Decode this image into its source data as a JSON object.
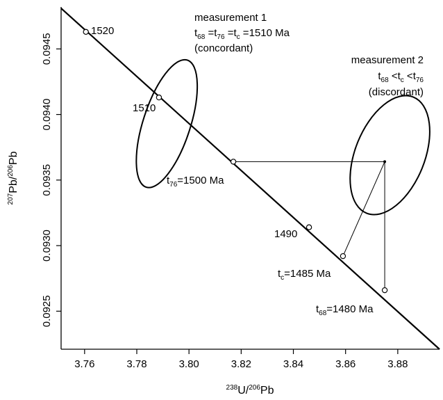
{
  "chart_data": {
    "type": "scatter",
    "title": "",
    "xlabel": {
      "sup": "238",
      "main1": "U/",
      "sup2": "206",
      "main2": "Pb"
    },
    "ylabel": {
      "sup": "207",
      "main1": "Pb/",
      "sup2": "206",
      "main2": "Pb"
    },
    "xlim": [
      3.751,
      3.896
    ],
    "ylim": [
      0.09221,
      0.09482
    ],
    "x_ticks": [
      3.76,
      3.78,
      3.8,
      3.82,
      3.84,
      3.86,
      3.88
    ],
    "x_tick_labels": [
      "3.76",
      "3.78",
      "3.80",
      "3.82",
      "3.84",
      "3.86",
      "3.88"
    ],
    "y_ticks": [
      0.0925,
      0.093,
      0.0935,
      0.094,
      0.0945
    ],
    "y_tick_labels": [
      "0.0925",
      "0.0930",
      "0.0935",
      "0.0940",
      "0.0945"
    ],
    "grid": false,
    "concordia": {
      "line": [
        [
          3.751,
          0.09481
        ],
        [
          3.896,
          0.09221
        ]
      ],
      "markers": [
        {
          "x": 3.7605,
          "y": 0.09463,
          "label": "1520"
        },
        {
          "x": 3.7885,
          "y": 0.09413,
          "label": "1510"
        },
        {
          "x": 3.817,
          "y": 0.09364,
          "label": "t76=1500 Ma"
        },
        {
          "x": 3.846,
          "y": 0.09314,
          "label": "1490"
        },
        {
          "x": 3.859,
          "y": 0.09292,
          "label": "tc=1485 Ma"
        },
        {
          "x": 3.875,
          "y": 0.09266,
          "label": "t68=1480 Ma"
        }
      ]
    },
    "measurements": [
      {
        "name": "measurement 1",
        "center": [
          3.7915,
          0.09393
        ],
        "ellipse_semi_axes_data": [
          0.009,
          0.00028
        ]
      },
      {
        "name": "measurement 2",
        "center": [
          3.877,
          0.09369
        ],
        "point": [
          3.875,
          0.09364
        ]
      }
    ]
  },
  "annotations": {
    "m1_title": "measurement 1",
    "m1_eq": {
      "t1": "t",
      "s1": "68",
      "t2": " =t",
      "s2": "76",
      "t3": " =t",
      "s3": "c",
      "t4": " =1510 Ma"
    },
    "m1_note": "(concordant)",
    "m2_title": "measurement 2",
    "m2_eq": {
      "t1": "t",
      "s1": "68",
      "t2": " <t",
      "s2": "c",
      "t3": " <t",
      "s3": "76"
    },
    "m2_note": "(discordant)",
    "lbl_1520": "1520",
    "lbl_1510": "1510",
    "lbl_1490": "1490",
    "lbl_t76": {
      "t": "t",
      "s": "76",
      "rest": "=1500 Ma"
    },
    "lbl_tc": {
      "t": "t",
      "s": "c",
      "rest": "=1485 Ma"
    },
    "lbl_t68": {
      "t": "t",
      "s": "68",
      "rest": "=1480 Ma"
    }
  }
}
